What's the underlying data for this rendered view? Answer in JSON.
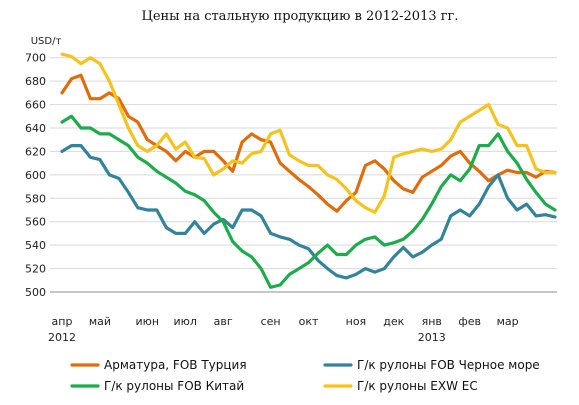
{
  "chart_data": {
    "type": "line",
    "title": "Цены на стальную продукцию в 2012-2013 гг.",
    "y_unit": "USD/т",
    "ylim": [
      500,
      710
    ],
    "y_ticks": [
      500,
      520,
      540,
      560,
      580,
      600,
      620,
      640,
      660,
      680,
      700
    ],
    "grid": "horizontal",
    "legend_position": "bottom",
    "x_ticks": [
      {
        "label": "апр",
        "index": 0
      },
      {
        "label": "май",
        "index": 4
      },
      {
        "label": "июн",
        "index": 9
      },
      {
        "label": "июл",
        "index": 13
      },
      {
        "label": "авг",
        "index": 17
      },
      {
        "label": "сен",
        "index": 22
      },
      {
        "label": "окт",
        "index": 26
      },
      {
        "label": "ноя",
        "index": 31
      },
      {
        "label": "дек",
        "index": 35
      },
      {
        "label": "янв",
        "index": 39
      },
      {
        "label": "фев",
        "index": 43
      },
      {
        "label": "мар",
        "index": 47
      }
    ],
    "year_labels": [
      {
        "label": "2012",
        "index": 0
      },
      {
        "label": "2013",
        "index": 39
      }
    ],
    "n_points": 53,
    "series": [
      {
        "name": "Арматура, FOB Турция",
        "color": "#e36c0a",
        "values": [
          670,
          682,
          685,
          665,
          665,
          670,
          665,
          650,
          645,
          630,
          625,
          620,
          612,
          620,
          615,
          620,
          620,
          612,
          603,
          628,
          635,
          630,
          628,
          610,
          603,
          596,
          590,
          583,
          575,
          569,
          578,
          585,
          608,
          612,
          605,
          595,
          588,
          585,
          598,
          603,
          608,
          616,
          620,
          610,
          603,
          595,
          600,
          604,
          602,
          602,
          598,
          603,
          602
        ]
      },
      {
        "name": "Г/к рулоны FOB Черное море",
        "color": "#31849b",
        "values": [
          620,
          625,
          625,
          615,
          613,
          600,
          597,
          585,
          572,
          570,
          570,
          555,
          550,
          550,
          560,
          550,
          558,
          562,
          555,
          570,
          570,
          565,
          550,
          547,
          545,
          540,
          537,
          527,
          520,
          514,
          512,
          515,
          520,
          517,
          520,
          530,
          538,
          530,
          534,
          540,
          545,
          565,
          570,
          565,
          575,
          590,
          600,
          580,
          570,
          575,
          565,
          566,
          564
        ]
      },
      {
        "name": "Г/к рулоны FOB Китай",
        "color": "#1cad4b",
        "values": [
          645,
          650,
          640,
          640,
          635,
          635,
          630,
          625,
          615,
          610,
          603,
          598,
          593,
          586,
          583,
          578,
          568,
          560,
          543,
          535,
          530,
          520,
          504,
          506,
          515,
          520,
          525,
          533,
          540,
          532,
          532,
          540,
          545,
          547,
          540,
          542,
          545,
          552,
          562,
          575,
          590,
          600,
          595,
          605,
          625,
          625,
          635,
          620,
          610,
          596,
          585,
          575,
          570
        ]
      },
      {
        "name": "Г/к рулоны EXW ЕС",
        "color": "#f7c21b",
        "values": [
          703,
          701,
          695,
          700,
          695,
          680,
          660,
          640,
          625,
          620,
          625,
          635,
          622,
          628,
          615,
          614,
          600,
          605,
          612,
          610,
          618,
          620,
          635,
          638,
          617,
          612,
          608,
          608,
          600,
          596,
          588,
          578,
          572,
          568,
          582,
          615,
          618,
          620,
          622,
          620,
          622,
          630,
          645,
          650,
          655,
          660,
          643,
          640,
          625,
          625,
          605,
          602,
          602
        ]
      }
    ]
  }
}
